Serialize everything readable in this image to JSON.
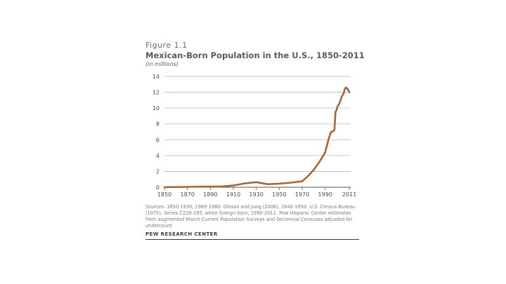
{
  "figure_label": "Figure 1.1",
  "colors": {
    "series": "#a5673a",
    "grid": "#b9b9b9",
    "axis": "#555555",
    "text": "#4a4a4a"
  },
  "chart_data": {
    "type": "line",
    "title": "Mexican-Born Population in the U.S., 1850-2011",
    "subtitle": "(in millions)",
    "xlabel": "",
    "ylabel": "",
    "xlim": [
      1850,
      2011
    ],
    "ylim": [
      0,
      14
    ],
    "grid": true,
    "x_ticks": [
      1850,
      1870,
      1890,
      1910,
      1930,
      1950,
      1970,
      1990,
      2011
    ],
    "y_ticks": [
      0,
      2,
      4,
      6,
      8,
      10,
      12,
      14
    ],
    "series": [
      {
        "name": "Mexican-born population (millions)",
        "x": [
          1850,
          1860,
          1870,
          1880,
          1890,
          1900,
          1910,
          1920,
          1930,
          1940,
          1950,
          1960,
          1970,
          1975,
          1980,
          1985,
          1990,
          1991,
          1992,
          1993,
          1994,
          1995,
          1996,
          1997,
          1998,
          1999,
          2000,
          2001,
          2002,
          2003,
          2004,
          2005,
          2006,
          2007,
          2008,
          2009,
          2010,
          2011
        ],
        "values": [
          0.01,
          0.03,
          0.04,
          0.07,
          0.08,
          0.1,
          0.22,
          0.49,
          0.64,
          0.38,
          0.45,
          0.58,
          0.76,
          1.4,
          2.2,
          3.2,
          4.4,
          5.0,
          5.5,
          6.1,
          6.5,
          7.0,
          7.0,
          7.1,
          7.2,
          9.5,
          9.8,
          10.3,
          10.5,
          10.8,
          11.3,
          11.6,
          11.8,
          12.4,
          12.6,
          12.5,
          12.3,
          12.0
        ]
      }
    ]
  },
  "source_text": "Sources: 1850-1930, 1960-1980: Gibson and Jung (2006); 1940-1950: U.S. Census Bureau (1975), Series C228-295, white foreign-born; 1990-2011: Pew Hispanic Center estimates from augmented March Current Population Surveys and Decennial Censuses adjusted for undercount",
  "footer": "PEW RESEARCH CENTER"
}
